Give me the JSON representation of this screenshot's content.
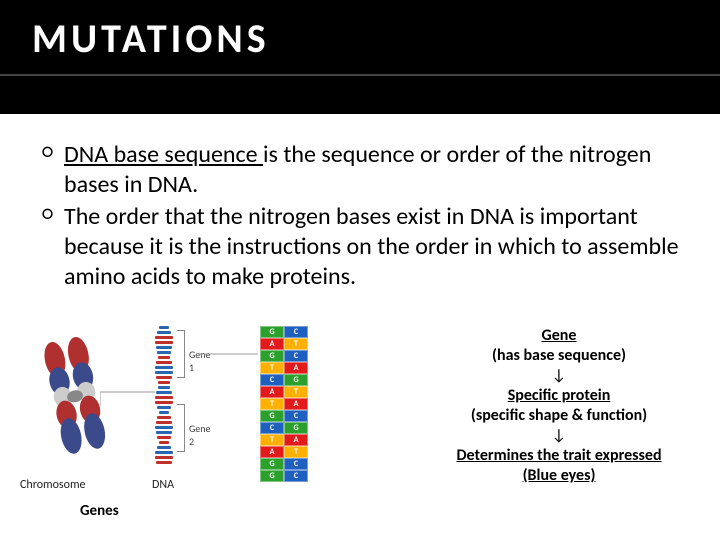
{
  "title": "MUTATIONS",
  "bullets": {
    "b1": {
      "u": "DNA base sequence ",
      "rest": "is the sequence or order of the nitrogen bases in DNA."
    },
    "b2": "The order that the nitrogen bases exist in DNA is important because it is the instructions on the order in which to assemble amino acids to make proteins."
  },
  "diagram": {
    "chromosome_label": "Chromosome",
    "dna_label": "DNA",
    "genes_label": "Genes",
    "gene1_label": "Gene 1",
    "gene2_label": "Gene 2",
    "chromosome_bands": [
      "#b03030",
      "#3a4a8a",
      "#bbb",
      "#b03030",
      "#3a4a8a",
      "#bbb"
    ],
    "helix_rungs": 28,
    "helix_colors": [
      "#2a66b0",
      "#2a66b0",
      "#c0302a",
      "#c0302a",
      "#2a66b0",
      "#2a66b0",
      "#c0302a",
      "#c0302a"
    ],
    "seq_bases": [
      "G",
      "C",
      "A",
      "T",
      "G",
      "C",
      "T",
      "A",
      "C",
      "G",
      "A",
      "T",
      "T",
      "A",
      "G",
      "C",
      "C",
      "G",
      "T",
      "A",
      "A",
      "T",
      "G",
      "C",
      "G",
      "C"
    ],
    "base_colors": {
      "A": "#e31a1c",
      "T": "#ffb000",
      "G": "#2ca02c",
      "C": "#1f5fbf"
    }
  },
  "flow": {
    "l1u": "Gene",
    "l1b": "(has base sequence)",
    "arrow": "↓",
    "l2u": "Specific protein",
    "l2b": "(specific shape & function)",
    "l3u": "Determines the trait expressed",
    "l3b": "(Blue eyes)"
  },
  "colors": {
    "bg": "#000000",
    "white": "#ffffff",
    "title": "#ffffff"
  },
  "fontsize": {
    "title": 40,
    "body": 24,
    "flow": 16,
    "caption": 12
  }
}
